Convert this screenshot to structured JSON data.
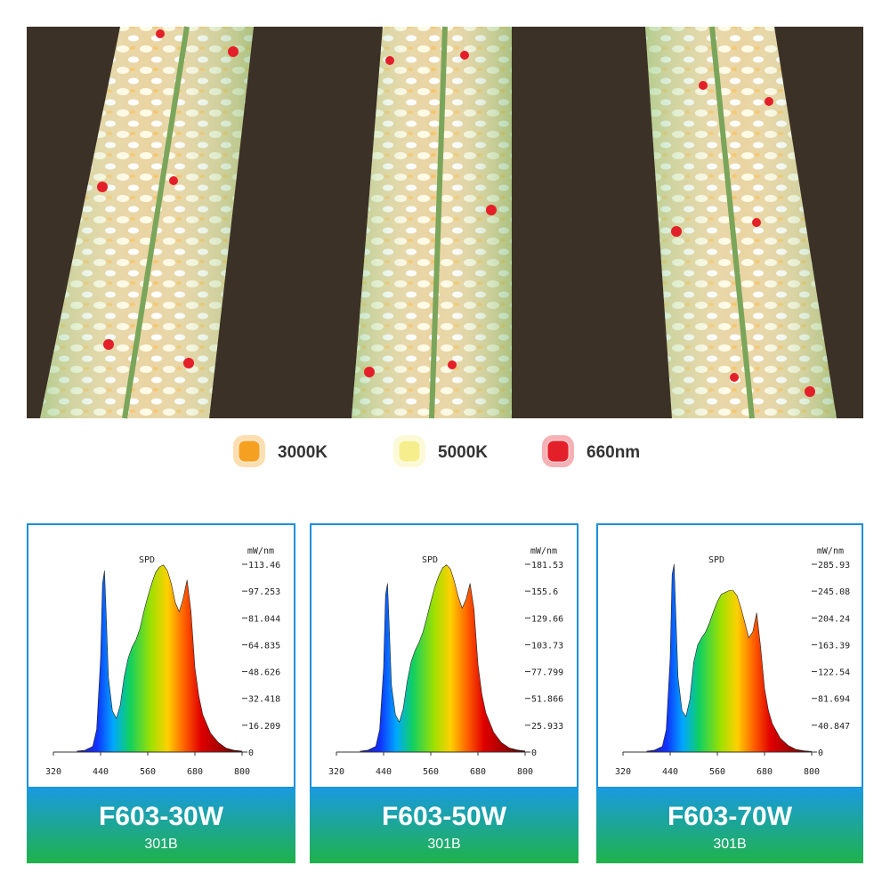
{
  "legend": [
    {
      "label": "3000K",
      "color": "#f5a020"
    },
    {
      "label": "5000K",
      "color": "#f6ee8c"
    },
    {
      "label": "660nm",
      "color": "#e3202a"
    }
  ],
  "chart_data": [
    {
      "type": "area",
      "title": "SPD",
      "y_axis_label": "mW/nm",
      "x": [
        380,
        400,
        420,
        430,
        440,
        445,
        450,
        455,
        460,
        470,
        480,
        490,
        500,
        510,
        520,
        530,
        540,
        550,
        560,
        570,
        580,
        590,
        600,
        610,
        620,
        630,
        640,
        650,
        660,
        670,
        680,
        690,
        700,
        720,
        740,
        760,
        780,
        800
      ],
      "values": [
        0.6,
        1.1,
        3.4,
        13.6,
        56.5,
        101.7,
        109.6,
        79.1,
        45.2,
        24.9,
        20.3,
        28.3,
        45.2,
        56.5,
        63.3,
        67.8,
        74.6,
        84.8,
        93.8,
        101.7,
        108.5,
        111.9,
        113,
        109.6,
        101.7,
        90.4,
        84.8,
        92.7,
        104,
        84.8,
        50.9,
        33.9,
        22.6,
        11.3,
        5.7,
        2.3,
        1.1,
        0.6
      ],
      "xlim": [
        320,
        800
      ],
      "xticks": [
        320,
        440,
        560,
        680,
        800
      ],
      "ylim": [
        0,
        113.46
      ],
      "yticks": [
        0,
        16.209,
        32.418,
        48.626,
        64.835,
        81.044,
        97.253,
        113.46
      ]
    },
    {
      "type": "area",
      "title": "SPD",
      "y_axis_label": "mW/nm",
      "x": [
        380,
        400,
        420,
        430,
        440,
        445,
        450,
        455,
        460,
        470,
        480,
        490,
        500,
        510,
        520,
        530,
        540,
        550,
        560,
        570,
        580,
        590,
        600,
        610,
        620,
        630,
        640,
        650,
        660,
        670,
        680,
        690,
        700,
        720,
        740,
        760,
        780,
        800
      ],
      "values": [
        0.9,
        1.8,
        5.4,
        21.7,
        81.5,
        152,
        163,
        116,
        65,
        36,
        29,
        42,
        68,
        87,
        98,
        106,
        116,
        130,
        145,
        159,
        170,
        178,
        181,
        177,
        165,
        150,
        139,
        148,
        163,
        138,
        85,
        56,
        38,
        19,
        9,
        4,
        2,
        1
      ],
      "xlim": [
        320,
        800
      ],
      "xticks": [
        320,
        440,
        560,
        680,
        800
      ],
      "ylim": [
        0,
        181.53
      ],
      "yticks": [
        0,
        25.933,
        51.866,
        77.799,
        103.73,
        129.66,
        155.6,
        181.53
      ]
    },
    {
      "type": "area",
      "title": "SPD",
      "y_axis_label": "mW/nm",
      "x": [
        380,
        400,
        420,
        430,
        440,
        445,
        450,
        455,
        460,
        470,
        480,
        490,
        500,
        510,
        520,
        530,
        540,
        550,
        560,
        570,
        580,
        590,
        600,
        610,
        620,
        630,
        640,
        650,
        660,
        670,
        680,
        690,
        700,
        720,
        740,
        760,
        780,
        800
      ],
      "values": [
        1.4,
        2.9,
        8.6,
        34,
        143,
        270,
        286,
        200,
        114,
        63,
        54,
        80,
        137,
        163,
        174,
        183,
        197,
        214,
        229,
        240,
        243,
        246,
        246,
        238,
        220,
        197,
        174,
        183,
        212,
        160,
        97,
        63,
        43,
        21,
        10,
        4,
        2,
        1
      ],
      "xlim": [
        320,
        800
      ],
      "xticks": [
        320,
        440,
        560,
        680,
        800
      ],
      "ylim": [
        0,
        285.93
      ],
      "yticks": [
        0,
        40.847,
        81.694,
        122.54,
        163.39,
        204.24,
        245.08,
        285.93
      ]
    }
  ],
  "products": [
    {
      "name": "F603-30W",
      "led": "301B"
    },
    {
      "name": "F603-50W",
      "led": "301B"
    },
    {
      "name": "F603-70W",
      "led": "301B"
    }
  ]
}
